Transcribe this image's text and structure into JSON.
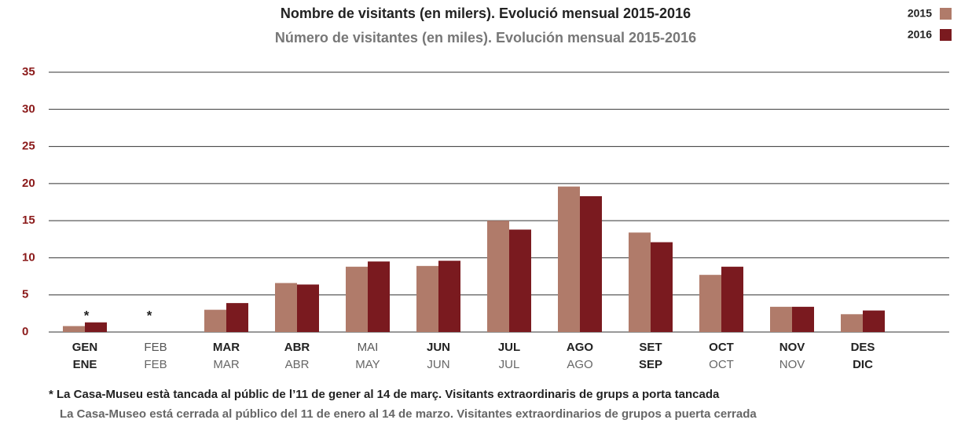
{
  "chart_data": {
    "type": "bar",
    "title": "Nombre de visitants (en milers). Evolució mensual 2015-2016",
    "subtitle": "Número de visitantes (en miles). Evolución mensual 2015-2016",
    "categories": [
      "GEN",
      "FEB",
      "MAR",
      "ABR",
      "MAI",
      "JUN",
      "JUL",
      "AGO",
      "SET",
      "OCT",
      "NOV",
      "DES"
    ],
    "categories_es": [
      "ENE",
      "FEB",
      "MAR",
      "ABR",
      "MAY",
      "JUN",
      "JUL",
      "AGO",
      "SEP",
      "OCT",
      "NOV",
      "DIC"
    ],
    "series": [
      {
        "name": "2015",
        "color": "#b07b6a",
        "values": [
          0.8,
          null,
          3.0,
          6.6,
          8.8,
          8.9,
          15.0,
          19.6,
          13.4,
          7.7,
          3.4,
          2.4
        ]
      },
      {
        "name": "2016",
        "color": "#7a1a1f",
        "values": [
          1.3,
          null,
          3.9,
          6.4,
          9.5,
          9.6,
          13.8,
          18.3,
          12.1,
          8.8,
          3.4,
          2.9
        ]
      }
    ],
    "annotations": [
      "*",
      "*"
    ],
    "footnote": "* La Casa-Museu està tancada al públic de l’11 de gener al 14 de març. Visitants extraordinaris de grups a porta tancada",
    "footnote_es": "La Casa-Museo está cerrada al público del 11 de enero al 14 de marzo. Visitantes extraordinarios de grupos a puerta cerrada",
    "ylim": [
      0,
      35
    ],
    "yticks": [
      0,
      5,
      10,
      15,
      20,
      25,
      30,
      35
    ],
    "grid": true,
    "legend": "top-right"
  }
}
